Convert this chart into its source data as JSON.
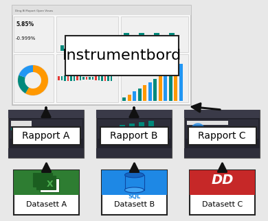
{
  "bg_color": "#e8e8e8",
  "instrumentbord_label": "Instrumentbord",
  "rapport_labels": [
    "Rapport A",
    "Rapport B",
    "Rapport C"
  ],
  "datasett_labels": [
    "Datasett A",
    "Datasett B",
    "Datasett C"
  ],
  "datasett_icon_colors": [
    "#2e7d32",
    "#1e88e5",
    "#c62828"
  ],
  "box_facecolor": "#ffffff",
  "box_edgecolor": "#222222",
  "arrow_color": "#111111",
  "dash_screenshot_bg": "#f5f5fa",
  "dash_border": "#cccccc",
  "rapport_screenshot_bg": "#23232d",
  "rapport_top_bar": "#3a3a48"
}
